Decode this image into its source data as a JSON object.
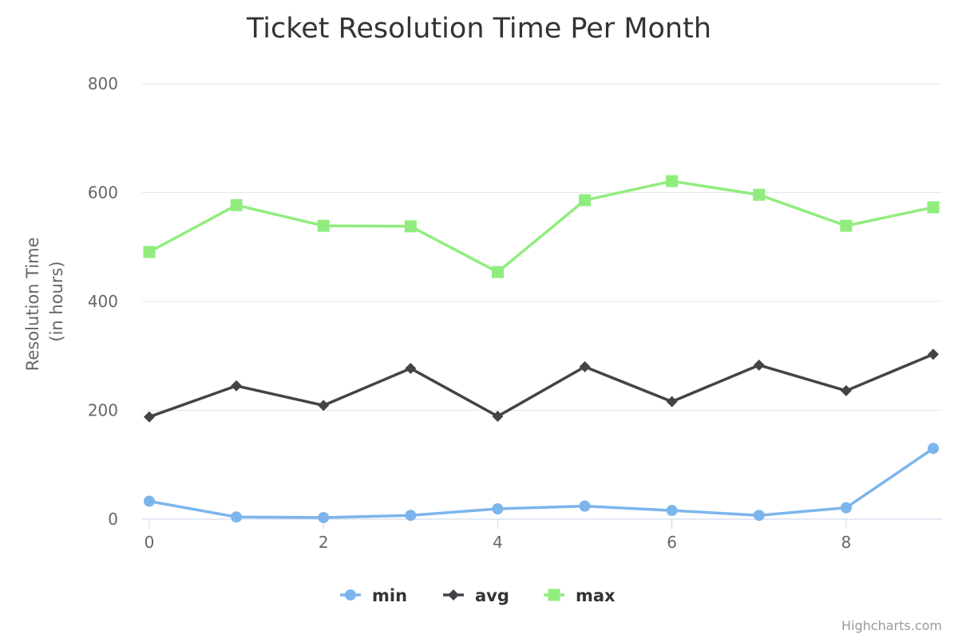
{
  "chart_data": {
    "type": "line",
    "title": "Ticket Resolution Time Per Month",
    "ylabel_line1": "Resolution Time",
    "ylabel_line2": "(in hours)",
    "xlabel": "",
    "x": [
      0,
      1,
      2,
      3,
      4,
      5,
      6,
      7,
      8,
      9
    ],
    "xlim": [
      0,
      9
    ],
    "xticks": [
      0,
      2,
      4,
      6,
      8
    ],
    "ylim": [
      0,
      800
    ],
    "yticks": [
      0,
      200,
      400,
      600,
      800
    ],
    "grid": true,
    "legend_position": "bottom-center",
    "series": [
      {
        "name": "min",
        "color": "#7cb5ec",
        "marker": "circle",
        "values": [
          33,
          4,
          3,
          7,
          19,
          24,
          16,
          7,
          21,
          130
        ]
      },
      {
        "name": "avg",
        "color": "#434348",
        "marker": "diamond",
        "values": [
          188,
          245,
          209,
          277,
          189,
          280,
          216,
          283,
          236,
          303
        ]
      },
      {
        "name": "max",
        "color": "#90ed7d",
        "marker": "square",
        "values": [
          491,
          577,
          539,
          538,
          454,
          586,
          621,
          596,
          539,
          573
        ]
      }
    ],
    "credits": "Highcharts.com"
  }
}
